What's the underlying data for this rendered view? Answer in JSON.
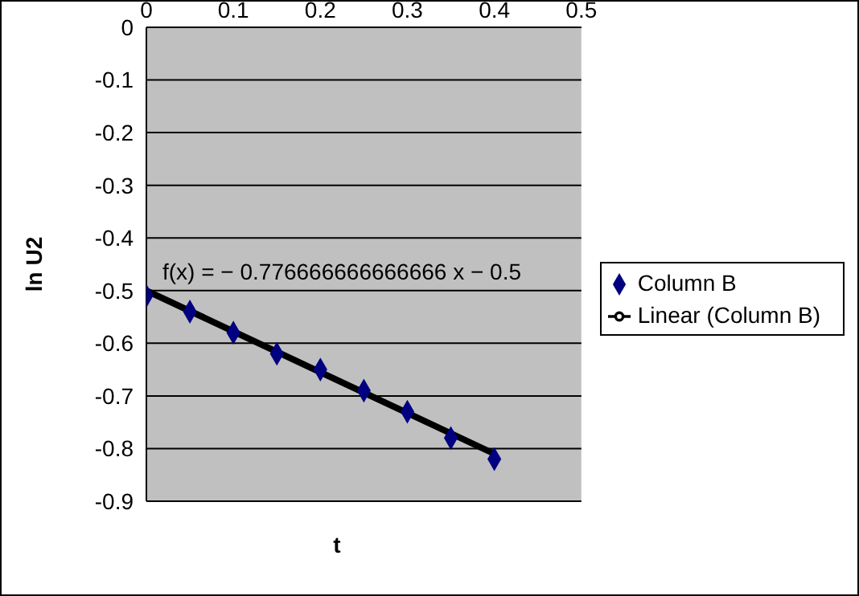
{
  "chart_data": {
    "type": "scatter",
    "xlabel": "t",
    "ylabel": "ln U2",
    "xlim": [
      0,
      0.5
    ],
    "xticks": [
      0,
      0.1,
      0.2,
      0.3,
      0.4,
      0.5
    ],
    "ylim": [
      -0.9,
      0
    ],
    "yticks": [
      -0.9,
      -0.8,
      -0.7,
      -0.6,
      -0.5,
      -0.4,
      -0.3,
      -0.2,
      -0.1,
      0
    ],
    "grid": "y",
    "legend": "right",
    "annotations": [
      "f(x) = − 0.776666666666666 x − 0.5"
    ],
    "series": [
      {
        "name": "Column B",
        "marker": "diamond",
        "color": "#000080",
        "x": [
          0,
          0.05,
          0.1,
          0.15,
          0.2,
          0.25,
          0.3,
          0.35,
          0.4
        ],
        "values": [
          -0.51,
          -0.54,
          -0.58,
          -0.62,
          -0.65,
          -0.69,
          -0.73,
          -0.78,
          -0.82
        ]
      },
      {
        "name": "Linear (Column B)",
        "type": "line",
        "marker": "none",
        "color": "#000000",
        "x": [
          0,
          0.4
        ],
        "values": [
          -0.5,
          -0.81
        ]
      }
    ]
  }
}
